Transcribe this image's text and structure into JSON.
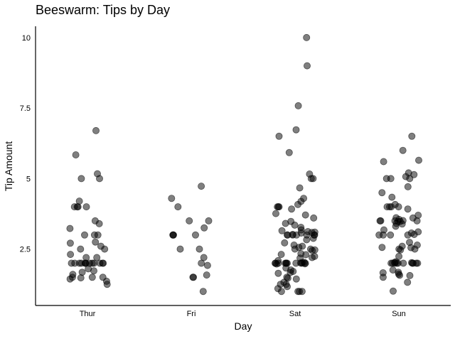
{
  "chart_data": {
    "type": "scatter",
    "subtype": "beeswarm",
    "title": "Beeswarm: Tips by Day",
    "xlabel": "Day",
    "ylabel": "Tip Amount",
    "categories": [
      "Thur",
      "Fri",
      "Sat",
      "Sun"
    ],
    "ylim": [
      0.5,
      10.4
    ],
    "yticks": [
      2.5,
      5,
      7.5,
      10
    ],
    "ytick_labels": [
      "2.5",
      "5",
      "7.5",
      "10"
    ],
    "grid": false,
    "legend": "none",
    "point_color": "#000000",
    "point_alpha": 0.5,
    "series": [
      {
        "category": "Thur",
        "values": [
          6.7,
          5.84,
          5.17,
          5.0,
          5.0,
          4.2,
          4.0,
          4.0,
          4.0,
          4.0,
          3.5,
          3.4,
          3.23,
          3.0,
          3.0,
          3.0,
          2.75,
          2.71,
          2.6,
          2.5,
          2.5,
          2.31,
          2.2,
          2.2,
          2.0,
          2.0,
          2.0,
          2.0,
          2.0,
          2.0,
          2.0,
          2.0,
          2.0,
          2.0,
          2.0,
          2.0,
          2.0,
          1.8,
          1.73,
          1.68,
          1.6,
          1.5,
          1.5,
          1.5,
          1.48,
          1.44,
          1.36,
          1.25
        ]
      },
      {
        "category": "Fri",
        "values": [
          4.73,
          4.3,
          4.0,
          3.5,
          3.5,
          3.25,
          3.0,
          3.0,
          3.0,
          3.0,
          2.5,
          2.5,
          2.2,
          2.0,
          1.92,
          1.58,
          1.5,
          1.5,
          1.0
        ]
      },
      {
        "category": "Sat",
        "values": [
          10.0,
          9.0,
          7.58,
          6.73,
          6.5,
          5.92,
          5.16,
          5.0,
          5.0,
          4.67,
          4.3,
          4.19,
          4.08,
          4.0,
          4.0,
          4.0,
          3.92,
          3.76,
          3.71,
          3.6,
          3.48,
          3.41,
          3.35,
          3.27,
          3.18,
          3.15,
          3.12,
          3.1,
          3.09,
          3.07,
          3.02,
          3.0,
          3.0,
          3.0,
          3.0,
          3.0,
          3.0,
          3.0,
          2.88,
          2.83,
          2.72,
          2.64,
          2.6,
          2.56,
          2.5,
          2.5,
          2.47,
          2.45,
          2.34,
          2.31,
          2.3,
          2.24,
          2.2,
          2.18,
          2.09,
          2.03,
          2.02,
          2.01,
          2.0,
          2.0,
          2.0,
          2.0,
          2.0,
          2.0,
          2.0,
          2.0,
          2.0,
          2.0,
          1.98,
          1.97,
          1.83,
          1.76,
          1.71,
          1.67,
          1.64,
          1.5,
          1.47,
          1.44,
          1.32,
          1.25,
          1.25,
          1.17,
          1.1,
          1.0,
          1.0,
          1.0,
          1.0
        ]
      },
      {
        "category": "Sun",
        "values": [
          6.5,
          6.0,
          5.65,
          5.6,
          5.2,
          5.14,
          5.07,
          5.0,
          5.0,
          5.0,
          4.71,
          4.5,
          4.34,
          4.08,
          4.0,
          4.0,
          4.0,
          4.0,
          3.92,
          3.7,
          3.61,
          3.6,
          3.55,
          3.51,
          3.5,
          3.5,
          3.5,
          3.5,
          3.48,
          3.48,
          3.41,
          3.39,
          3.31,
          3.18,
          3.11,
          3.07,
          3.02,
          3.0,
          3.0,
          3.0,
          3.0,
          2.74,
          2.64,
          2.6,
          2.56,
          2.55,
          2.5,
          2.5,
          2.47,
          2.24,
          2.05,
          2.03,
          2.02,
          2.0,
          2.0,
          2.0,
          2.0,
          2.0,
          2.0,
          2.0,
          2.0,
          2.0,
          2.0,
          1.76,
          1.68,
          1.66,
          1.61,
          1.57,
          1.56,
          1.5,
          1.32,
          1.01
        ]
      }
    ]
  }
}
